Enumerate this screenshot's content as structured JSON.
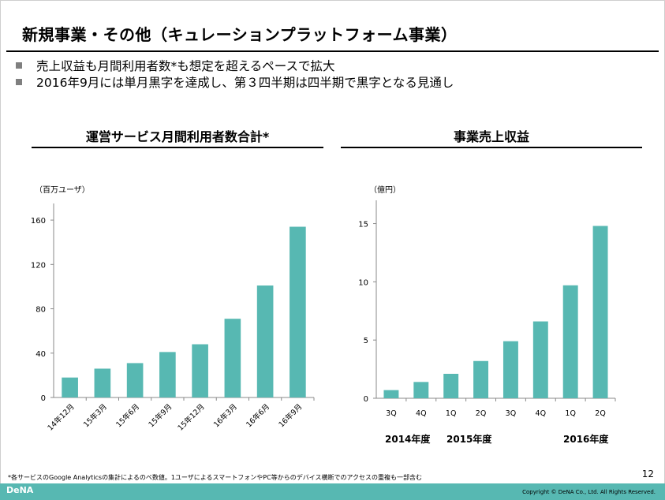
{
  "slide": {
    "title": "新規事業・その他（キュレーションプラットフォーム事業）",
    "bullets": [
      "売上収益も月間利用者数*も想定を超えるペースで拡大",
      "2016年9月には単月黒字を達成し、第３四半期は四半期で黒字となる見通し"
    ],
    "footnote": "*各サービスのGoogle Analyticsの集計によるのべ数値。1ユーザによるスマートフォンやPC等からのデバイス横断でのアクセスの重複も一部含む",
    "page_number": "12",
    "logo_text": "DeNA",
    "copyright": "Copyright © DeNA Co., Ltd. All Rights Reserved.",
    "colors": {
      "bar": "#57b8b2",
      "footer": "#57b8b2"
    }
  },
  "chart_data": [
    {
      "type": "bar",
      "title": "運営サービス月間利用者数合計*",
      "unit_label": "（百万ユーザ）",
      "categories": [
        "14年12月",
        "15年3月",
        "15年6月",
        "15年9月",
        "15年12月",
        "16年3月",
        "16年6月",
        "16年9月"
      ],
      "values": [
        18,
        26,
        31,
        41,
        48,
        71,
        101,
        154
      ],
      "ylim": [
        0,
        175
      ],
      "yticks": [
        0,
        40,
        80,
        120,
        160
      ],
      "grid": false
    },
    {
      "type": "bar",
      "title": "事業売上収益",
      "unit_label": "（億円）",
      "categories": [
        "3Q",
        "4Q",
        "1Q",
        "2Q",
        "3Q",
        "4Q",
        "1Q",
        "2Q"
      ],
      "values": [
        0.7,
        1.4,
        2.1,
        3.2,
        4.9,
        6.6,
        9.7,
        14.8
      ],
      "ylim": [
        0,
        17
      ],
      "yticks": [
        0,
        5,
        10,
        15
      ],
      "grid": false,
      "year_labels": [
        "2014年度",
        "2015年度",
        "2016年度"
      ]
    }
  ]
}
